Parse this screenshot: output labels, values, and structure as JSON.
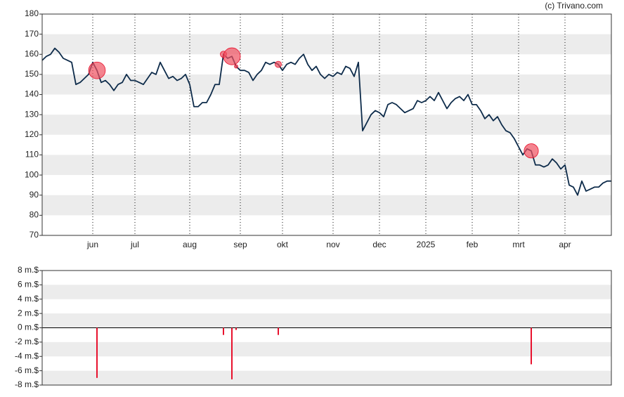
{
  "chart_data": [
    {
      "type": "line",
      "source": "(c) Trivano.com",
      "color": "#0d2b4a",
      "categories": [
        null,
        null,
        null,
        null,
        null,
        null,
        null,
        null,
        null,
        null,
        null,
        null,
        "jun",
        null,
        null,
        null,
        null,
        null,
        null,
        null,
        null,
        null,
        "jul",
        null,
        null,
        null,
        null,
        null,
        null,
        null,
        null,
        null,
        null,
        null,
        null,
        "aug",
        null,
        null,
        null,
        null,
        null,
        null,
        null,
        null,
        null,
        null,
        null,
        "sep",
        null,
        null,
        null,
        null,
        null,
        null,
        null,
        null,
        null,
        "okt",
        null,
        null,
        null,
        null,
        null,
        null,
        null,
        null,
        null,
        null,
        null,
        "nov",
        null,
        null,
        null,
        null,
        null,
        null,
        null,
        null,
        null,
        null,
        "dec",
        null,
        null,
        null,
        null,
        null,
        null,
        null,
        null,
        null,
        null,
        "2025",
        null,
        null,
        null,
        null,
        null,
        null,
        null,
        null,
        null,
        null,
        "feb",
        null,
        null,
        null,
        null,
        null,
        null,
        null,
        null,
        null,
        null,
        "mrt",
        null,
        null,
        null,
        null,
        null,
        null,
        null,
        null,
        null,
        null,
        "apr",
        null,
        null,
        null,
        null,
        null,
        null,
        null,
        null,
        null,
        null,
        null
      ],
      "values": [
        157,
        159,
        160,
        163,
        161,
        158,
        157,
        156,
        145,
        146,
        148,
        150,
        156,
        152,
        146,
        147,
        145,
        142,
        145,
        146,
        150,
        147,
        147,
        146,
        145,
        148,
        151,
        150,
        156,
        152,
        148,
        149,
        147,
        148,
        150,
        145,
        134,
        134,
        136,
        136,
        140,
        145,
        145,
        160,
        158,
        159,
        154,
        152,
        152,
        151,
        147,
        150,
        152,
        156,
        155,
        156,
        155,
        152,
        155,
        156,
        155,
        158,
        160,
        155,
        152,
        154,
        150,
        148,
        150,
        149,
        151,
        150,
        154,
        153,
        149,
        156,
        122,
        126,
        130,
        132,
        131,
        129,
        135,
        136,
        135,
        133,
        131,
        132,
        133,
        137,
        136,
        137,
        139,
        137,
        141,
        137,
        133,
        136,
        138,
        139,
        137,
        140,
        135,
        135,
        132,
        128,
        130,
        127,
        129,
        125,
        122,
        121,
        118,
        114,
        110,
        113,
        112,
        105,
        105,
        104,
        105,
        108,
        106,
        103,
        105,
        95,
        94,
        90,
        97,
        92,
        93,
        94,
        94,
        96,
        97,
        97
      ],
      "ylim": [
        70,
        180
      ],
      "yticks": [
        70,
        80,
        90,
        100,
        110,
        120,
        130,
        140,
        150,
        160,
        170,
        180
      ],
      "grid": true
    },
    {
      "type": "bar",
      "color": "#e8112d",
      "values": [
        null,
        null,
        null,
        null,
        null,
        null,
        null,
        null,
        null,
        null,
        null,
        null,
        null,
        -7,
        null,
        null,
        null,
        null,
        null,
        null,
        null,
        null,
        null,
        null,
        null,
        null,
        null,
        null,
        null,
        null,
        null,
        null,
        null,
        null,
        null,
        null,
        null,
        null,
        null,
        null,
        null,
        null,
        null,
        -1,
        null,
        -7.2,
        -0.3,
        null,
        null,
        null,
        null,
        null,
        null,
        null,
        null,
        null,
        -1,
        null,
        null,
        null,
        null,
        null,
        null,
        null,
        null,
        null,
        null,
        null,
        null,
        null,
        null,
        null,
        null,
        null,
        null,
        null,
        null,
        null,
        null,
        null,
        null,
        null,
        null,
        null,
        null,
        null,
        null,
        null,
        null,
        null,
        null,
        null,
        null,
        null,
        null,
        null,
        null,
        null,
        null,
        null,
        null,
        null,
        null,
        null,
        null,
        null,
        null,
        null,
        null,
        null,
        null,
        null,
        null,
        null,
        null,
        null,
        -5.1,
        null,
        null,
        null,
        null,
        null,
        null,
        null,
        null,
        null,
        null,
        null,
        null,
        null,
        null,
        null,
        null,
        null,
        null,
        null
      ],
      "ylim": [
        -8,
        8
      ],
      "yticks": [
        {
          "value": -8,
          "label": "-8 m.$"
        },
        {
          "value": -6,
          "label": "-6 m.$"
        },
        {
          "value": -4,
          "label": "-4 m.$"
        },
        {
          "value": -2,
          "label": "-2 m.$"
        },
        {
          "value": 0,
          "label": "0 m.$"
        },
        {
          "value": 2,
          "label": "2 m.$"
        },
        {
          "value": 4,
          "label": "4 m.$"
        },
        {
          "value": 6,
          "label": "6 m.$"
        },
        {
          "value": 8,
          "label": "8 m.$"
        }
      ],
      "grid": true
    }
  ]
}
